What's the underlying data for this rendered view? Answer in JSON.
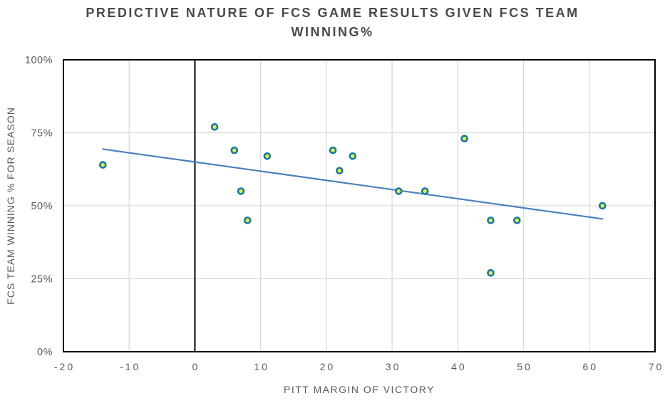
{
  "chart_data": {
    "type": "scatter",
    "title": "PREDICTIVE NATURE OF FCS GAME RESULTS GIVEN FCS TEAM WINNING%",
    "title_lines": [
      "PREDICTIVE NATURE OF FCS GAME RESULTS GIVEN FCS TEAM",
      "WINNING%"
    ],
    "xlabel": "PITT MARGIN OF VICTORY",
    "ylabel": "FCS TEAM WINNING % FOR SEASON",
    "xlim": [
      -20,
      70
    ],
    "ylim": [
      0,
      100
    ],
    "xticks": [
      -20,
      -10,
      0,
      10,
      20,
      30,
      40,
      50,
      60,
      70
    ],
    "xtick_labels": [
      "-20",
      "-10",
      "0",
      "10",
      "20",
      "30",
      "40",
      "50",
      "60",
      "70"
    ],
    "yticks": [
      0,
      25,
      50,
      75,
      100
    ],
    "ytick_labels": [
      "0%",
      "25%",
      "50%",
      "75%",
      "100%"
    ],
    "grid": true,
    "legend": false,
    "points": [
      {
        "x": -14,
        "y": 64
      },
      {
        "x": 3,
        "y": 77
      },
      {
        "x": 6,
        "y": 69
      },
      {
        "x": 7,
        "y": 55
      },
      {
        "x": 8,
        "y": 45
      },
      {
        "x": 11,
        "y": 67
      },
      {
        "x": 21,
        "y": 69
      },
      {
        "x": 22,
        "y": 62
      },
      {
        "x": 24,
        "y": 67
      },
      {
        "x": 31,
        "y": 55
      },
      {
        "x": 35,
        "y": 55
      },
      {
        "x": 41,
        "y": 73
      },
      {
        "x": 45,
        "y": 45
      },
      {
        "x": 45,
        "y": 27
      },
      {
        "x": 49,
        "y": 45
      },
      {
        "x": 62,
        "y": 50
      }
    ],
    "trendline": {
      "x1": -14,
      "y1": 69.4,
      "x2": 62,
      "y2": 45.5
    },
    "colors": {
      "marker_ring": "#1879A2",
      "marker_fill": "#E3EF4B",
      "trendline": "#497FBD",
      "gridline": "#D9D9D9",
      "axis_line": "#000000",
      "tick_text": "#595959",
      "title_text": "#4A4A4A"
    }
  }
}
